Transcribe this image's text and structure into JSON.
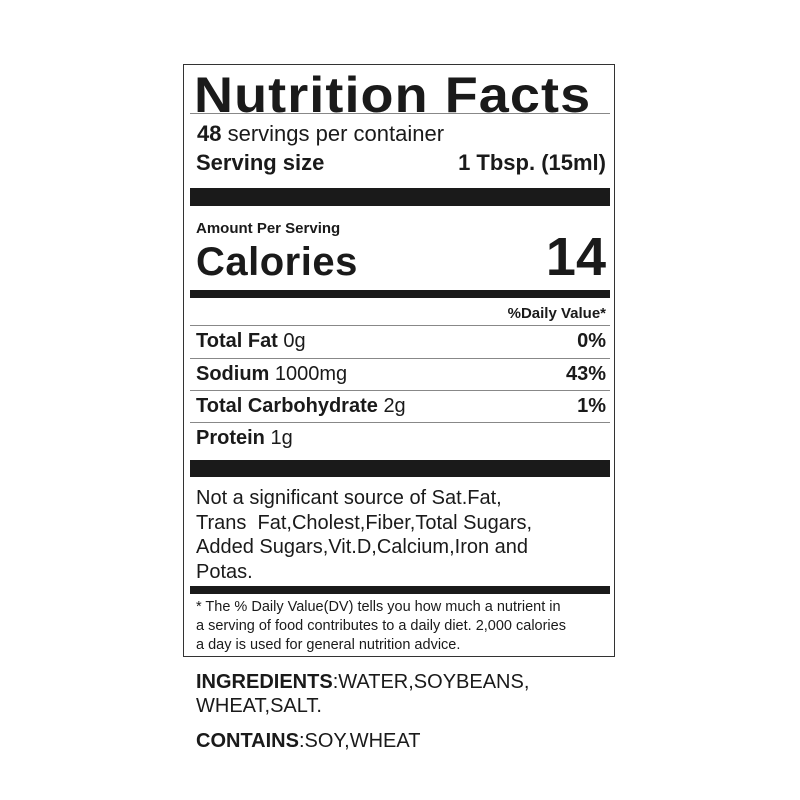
{
  "title": "Nutrition Facts",
  "servings": {
    "count": "48",
    "label": "servings per container"
  },
  "serving_size": {
    "label": "Serving size",
    "value": "1 Tbsp. (15ml)"
  },
  "amount_per_serving": "Amount Per Serving",
  "calories": {
    "label": "Calories",
    "value": "14"
  },
  "daily_value_header": "%Daily Value*",
  "nutrients": [
    {
      "name": "Total Fat",
      "amount": "0g",
      "dv": "0%"
    },
    {
      "name": "Sodium",
      "amount": "1000mg",
      "dv": "43%"
    },
    {
      "name": "Total Carbohydrate",
      "amount": "2g",
      "dv": "1%"
    },
    {
      "name": "Protein",
      "amount": "1g",
      "dv": ""
    }
  ],
  "not_significant": [
    "Not a significant source of Sat.Fat,",
    "Trans  Fat,Cholest,Fiber,Total Sugars,",
    "Added Sugars,Vit.D,Calcium,Iron and",
    "Potas."
  ],
  "footnote": [
    "* The % Daily Value(DV) tells you how much a nutrient in",
    "a serving of food contributes to a daily diet. 2,000 calories",
    "a day is used for general nutrition advice."
  ],
  "ingredients": {
    "label": "INGREDIENTS",
    "line1": ":WATER,SOYBEANS,",
    "line2": "WHEAT,SALT."
  },
  "contains": {
    "label": "CONTAINS",
    "value": ":SOY,WHEAT"
  }
}
